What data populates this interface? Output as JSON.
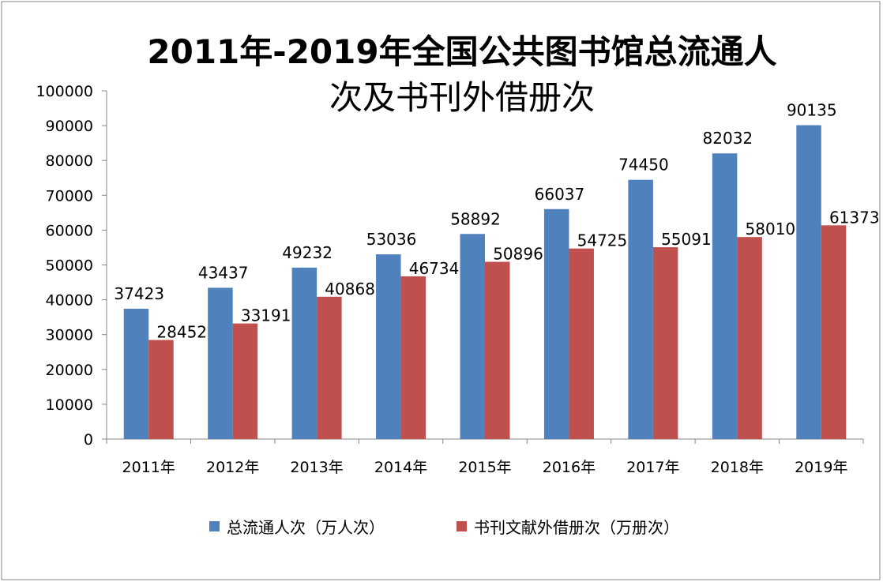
{
  "chart_data": {
    "type": "bar",
    "title_line1": "2011年-2019年全国公共图书馆总流通人",
    "title_line2": "次及书刊外借册次",
    "categories": [
      "2011年",
      "2012年",
      "2013年",
      "2014年",
      "2015年",
      "2016年",
      "2017年",
      "2018年",
      "2019年"
    ],
    "series": [
      {
        "name": "总流通人次（万人次）",
        "color": "#4F81BD",
        "values": [
          37423,
          43437,
          49232,
          53036,
          58892,
          66037,
          74450,
          82032,
          90135
        ]
      },
      {
        "name": "书刊文献外借册次（万册次）",
        "color": "#C0504D",
        "values": [
          28452,
          33191,
          40868,
          46734,
          50896,
          54725,
          55091,
          58010,
          61373
        ]
      }
    ],
    "ylim": [
      0,
      100000
    ],
    "yticks": [
      0,
      10000,
      20000,
      30000,
      40000,
      50000,
      60000,
      70000,
      80000,
      90000,
      100000
    ],
    "xlabel": "",
    "ylabel": "",
    "grid": false,
    "legend": "bottom"
  }
}
